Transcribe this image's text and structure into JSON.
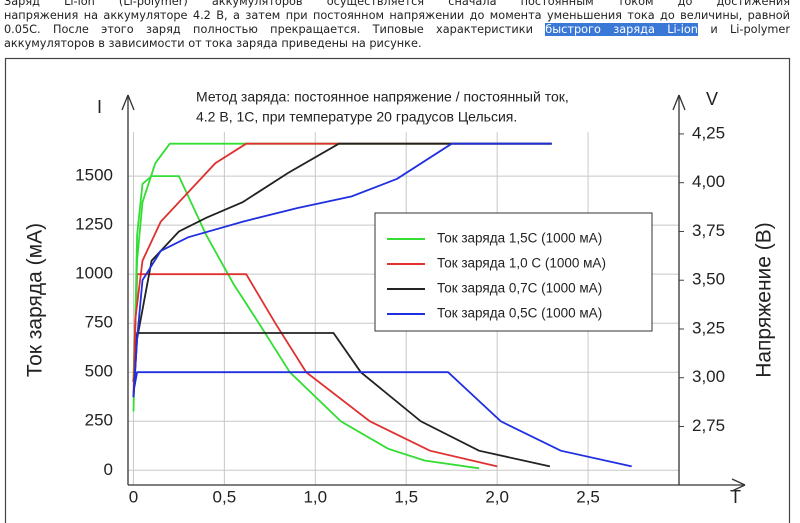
{
  "paragraph": {
    "line_1": "Заряд Li-ion (Li-polymer) аккумуляторов осуществляется сначала постоянным током до достижения",
    "line_2": "напряжения на аккумуляторе 4.2 В, а затем при постоянном напряжении до момента уменьшения тока до величины, равной",
    "line_3_start": "0.05C. После этого заряд полностью прекращается. Типовые характеристики",
    "line_3_link": "быстрого заряда Li-ion",
    "line_3_end": "и Li-polymer",
    "line_4": "аккумуляторов в зависимости от тока заряда приведены на рисунке."
  },
  "chart_data": {
    "type": "line",
    "title": "Метод заряда: постоянное напряжение / постоянный ток,",
    "subtitle": "4.2 В, 1С, при температуре 20 градусов Цельсия.",
    "y_label": "Ток заряда (мА)",
    "y2_label": "Напряжение (В)",
    "y_symbol": "I",
    "y2_symbol": "V",
    "x_symbol": "T",
    "xlim": [
      -0.03,
      3.0
    ],
    "xticks": [
      0,
      {
        "value": 0.5,
        "label": "0,5"
      },
      {
        "value": 1.0,
        "label": "1,0"
      },
      {
        "value": 1.5,
        "label": "1,5"
      },
      {
        "value": 2.0,
        "label": "2,0"
      },
      {
        "value": 2.5,
        "label": "2,5"
      }
    ],
    "ylim": [
      -75,
      1725
    ],
    "yticks": [
      0,
      250,
      500,
      750,
      1000,
      1250,
      1500
    ],
    "y2lim": [
      2.45,
      4.26
    ],
    "y2ticks": [
      {
        "value": 2.75,
        "label": "2,75"
      },
      {
        "value": 3.0,
        "label": "3,00"
      },
      {
        "value": 3.25,
        "label": "3,25"
      },
      {
        "value": 3.5,
        "label": "3,50"
      },
      {
        "value": 3.75,
        "label": "3,75"
      },
      {
        "value": 4.0,
        "label": "4,00"
      },
      {
        "value": 4.25,
        "label": "4,25"
      }
    ],
    "grid": true,
    "legend": "center-right",
    "series": [
      {
        "name": "Ток заряда  1,5С (1000 мА)",
        "color": "#33dd33",
        "x": [
          0,
          0.02,
          0.05,
          0.1,
          0.25,
          0.4,
          0.55,
          0.69,
          0.86,
          1.14,
          1.4,
          1.6,
          1.9
        ],
        "values": [
          300,
          1200,
          1460,
          1500,
          1500,
          1200,
          950,
          750,
          500,
          250,
          110,
          50,
          10
        ]
      },
      {
        "name": "Ток заряда  1,0 С (1000 мА)",
        "color": "#e03030",
        "x": [
          0,
          0.02,
          0.62,
          0.78,
          0.95,
          1.3,
          1.63,
          2.0
        ],
        "values": [
          450,
          1000,
          1000,
          750,
          500,
          250,
          100,
          20
        ]
      },
      {
        "name": "Ток заряда  0,7С (1000 мА)",
        "color": "#222222",
        "x": [
          0,
          0.02,
          1.1,
          1.25,
          1.58,
          1.9,
          2.29
        ],
        "values": [
          450,
          700,
          700,
          500,
          250,
          100,
          20
        ]
      },
      {
        "name": "Ток заряда  0,5С (1000 мА)",
        "color": "#2030e0",
        "x": [
          0,
          0.02,
          1.73,
          2.02,
          2.35,
          2.74
        ],
        "values": [
          400,
          500,
          500,
          250,
          100,
          20
        ]
      },
      {
        "color": "#33dd33",
        "axis": "y2",
        "x": [
          0,
          0.02,
          0.05,
          0.12,
          0.2,
          2.3
        ],
        "values": [
          3.0,
          3.6,
          3.9,
          4.1,
          4.2,
          4.2
        ]
      },
      {
        "color": "#e03030",
        "axis": "y2",
        "x": [
          0,
          0.01,
          0.05,
          0.15,
          0.3,
          0.45,
          0.62,
          2.3
        ],
        "values": [
          2.9,
          3.3,
          3.6,
          3.8,
          3.95,
          4.1,
          4.2,
          4.2
        ]
      },
      {
        "color": "#222222",
        "axis": "y2",
        "x": [
          0,
          0.02,
          0.1,
          0.25,
          0.4,
          0.6,
          0.85,
          1.13,
          2.3
        ],
        "values": [
          2.9,
          3.2,
          3.6,
          3.75,
          3.82,
          3.9,
          4.05,
          4.2,
          4.2
        ]
      },
      {
        "color": "#2030e0",
        "axis": "y2",
        "x": [
          0,
          0.02,
          0.05,
          0.15,
          0.3,
          0.6,
          0.9,
          1.2,
          1.45,
          1.75,
          2.3
        ],
        "values": [
          2.9,
          3.2,
          3.5,
          3.65,
          3.72,
          3.8,
          3.87,
          3.93,
          4.02,
          4.2,
          4.2
        ]
      }
    ]
  }
}
